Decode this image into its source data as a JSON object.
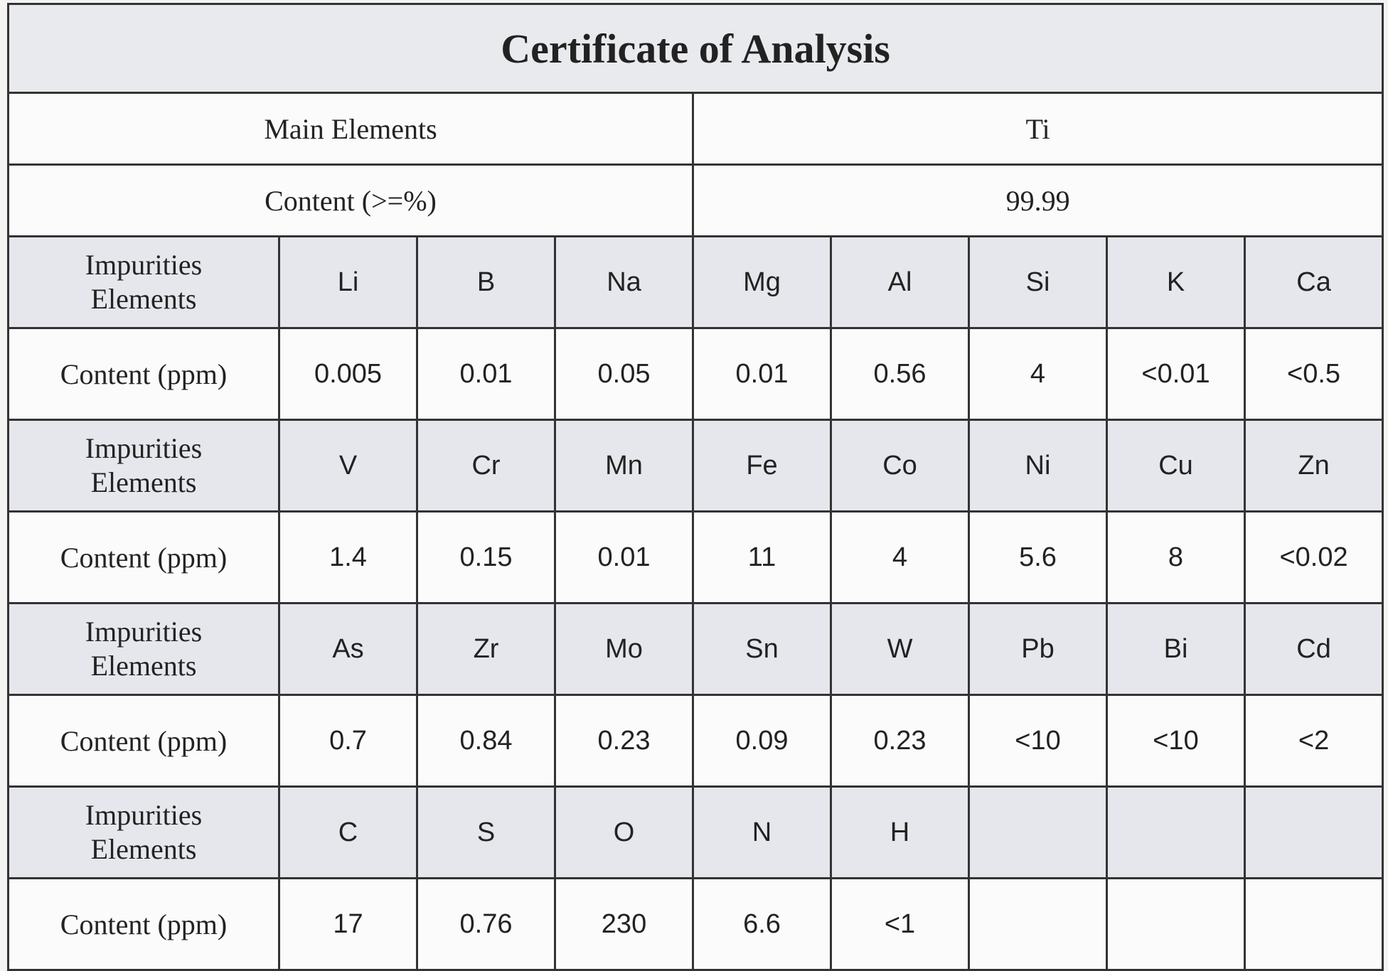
{
  "title": "Certificate of Analysis",
  "main": [
    [
      "Main Elements",
      "Ti"
    ],
    [
      "Content (>=%)",
      "99.99"
    ]
  ],
  "impurities": [
    {
      "label": "Impurities Elements",
      "elements": [
        "Li",
        "B",
        "Na",
        "Mg",
        "Al",
        "Si",
        "K",
        "Ca"
      ],
      "content_label": "Content (ppm)",
      "contents": [
        "0.005",
        "0.01",
        "0.05",
        "0.01",
        "0.56",
        "4",
        "<0.01",
        "<0.5"
      ]
    },
    {
      "label": "Impurities Elements",
      "elements": [
        "V",
        "Cr",
        "Mn",
        "Fe",
        "Co",
        "Ni",
        "Cu",
        "Zn"
      ],
      "content_label": "Content (ppm)",
      "contents": [
        "1.4",
        "0.15",
        "0.01",
        "11",
        "4",
        "5.6",
        "8",
        "<0.02"
      ]
    },
    {
      "label": "Impurities Elements",
      "elements": [
        "As",
        "Zr",
        "Mo",
        "Sn",
        "W",
        "Pb",
        "Bi",
        "Cd"
      ],
      "content_label": "Content (ppm)",
      "contents": [
        "0.7",
        "0.84",
        "0.23",
        "0.09",
        "0.23",
        "<10",
        "<10",
        "<2"
      ]
    },
    {
      "label": "Impurities Elements",
      "elements": [
        "C",
        "S",
        "O",
        "N",
        "H"
      ],
      "content_label": "Content (ppm)",
      "contents": [
        "17",
        "0.76",
        "230",
        "6.6",
        "<1"
      ]
    }
  ]
}
